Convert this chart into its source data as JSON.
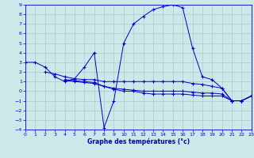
{
  "xlabel": "Graphe des températures (°c)",
  "bg_color": "#cce8e8",
  "grid_color": "#aacccc",
  "line_color": "#0000cc",
  "ylim": [
    -4,
    9
  ],
  "xlim": [
    0,
    23
  ],
  "yticks": [
    -4,
    -3,
    -2,
    -1,
    0,
    1,
    2,
    3,
    4,
    5,
    6,
    7,
    8,
    9
  ],
  "xticks": [
    0,
    1,
    2,
    3,
    4,
    5,
    6,
    7,
    8,
    9,
    10,
    11,
    12,
    13,
    14,
    15,
    16,
    17,
    18,
    19,
    20,
    21,
    22,
    23
  ],
  "main_x": [
    0,
    1,
    2,
    3,
    4,
    5,
    6,
    7,
    8,
    9,
    10,
    11,
    12,
    13,
    14,
    15,
    16,
    17,
    18,
    19,
    20,
    21,
    22,
    23
  ],
  "main_y": [
    3.0,
    3.0,
    2.5,
    1.5,
    1.0,
    1.3,
    2.5,
    4.0,
    -3.8,
    -1.0,
    5.0,
    7.0,
    7.8,
    8.5,
    8.8,
    9.0,
    8.7,
    4.5,
    1.5,
    1.2,
    0.3,
    -1.0,
    -1.0,
    -0.5
  ],
  "flat1_x": [
    2,
    3,
    4,
    5,
    6,
    7,
    8,
    9,
    10,
    11,
    12,
    13,
    14,
    15,
    16,
    17,
    18,
    19,
    20,
    21,
    22,
    23
  ],
  "flat1_y": [
    2.0,
    1.8,
    1.5,
    1.3,
    1.2,
    1.2,
    1.0,
    1.0,
    1.0,
    1.0,
    1.0,
    1.0,
    1.0,
    1.0,
    1.0,
    0.8,
    0.7,
    0.5,
    0.3,
    -1.0,
    -1.0,
    -0.5
  ],
  "flat2_x": [
    4,
    5,
    6,
    7,
    8,
    9,
    10,
    11,
    12,
    13,
    14,
    15,
    16,
    17,
    18,
    19,
    20,
    21,
    22,
    23
  ],
  "flat2_y": [
    1.2,
    1.1,
    1.0,
    0.9,
    0.5,
    0.3,
    0.2,
    0.1,
    0.0,
    0.0,
    0.0,
    0.0,
    0.0,
    -0.1,
    -0.2,
    -0.2,
    -0.3,
    -1.0,
    -1.0,
    -0.5
  ],
  "flat3_x": [
    4,
    5,
    6,
    7,
    8,
    9,
    10,
    11,
    12,
    13,
    14,
    15,
    16,
    17,
    18,
    19,
    20,
    21,
    22,
    23
  ],
  "flat3_y": [
    1.1,
    1.0,
    0.9,
    0.8,
    0.5,
    0.2,
    0.0,
    0.0,
    -0.2,
    -0.3,
    -0.3,
    -0.3,
    -0.3,
    -0.4,
    -0.5,
    -0.5,
    -0.5,
    -1.0,
    -1.0,
    -0.5
  ]
}
